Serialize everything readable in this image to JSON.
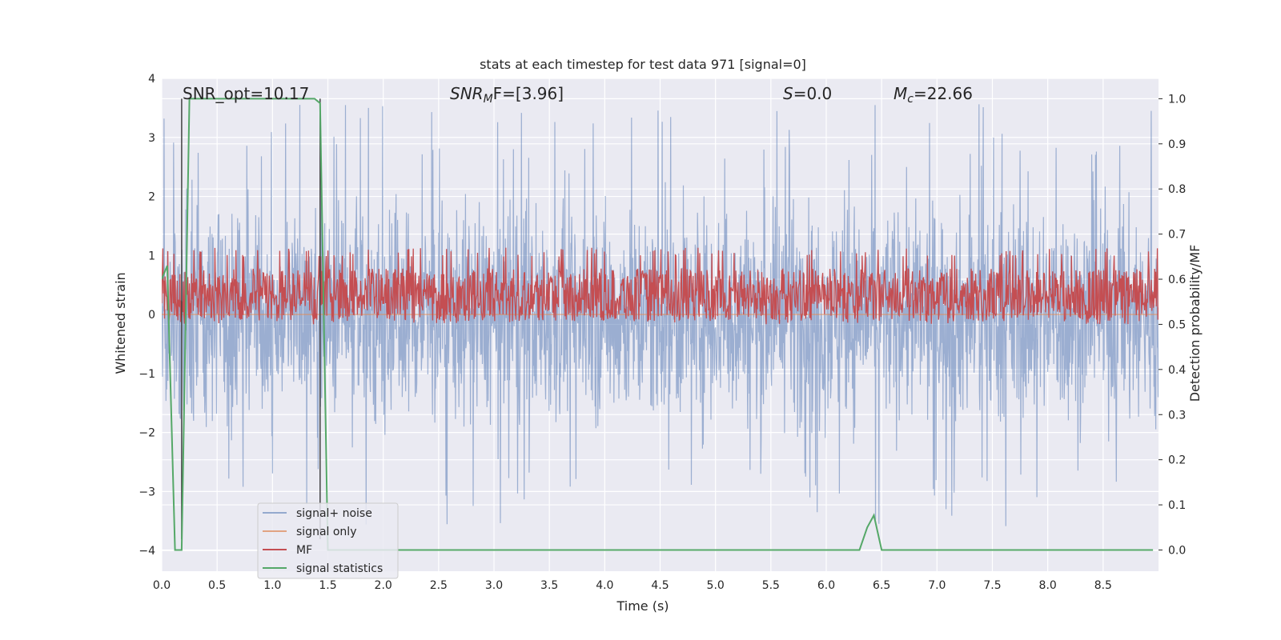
{
  "chart_data": {
    "type": "line",
    "title": "stats at each timestep for test data 971 [signal=0]",
    "xlabel": "Time (s)",
    "ylabel_left": "Whitened strain",
    "ylabel_right": "Detection probability/MF",
    "xlim": [
      0,
      9
    ],
    "ylim_left": [
      -4.35,
      4.0
    ],
    "ylim_right": [
      -0.047,
      1.045
    ],
    "x_ticks": [
      "0.0",
      "0.5",
      "1.0",
      "1.5",
      "2.0",
      "2.5",
      "3.0",
      "3.5",
      "4.0",
      "4.5",
      "5.0",
      "5.5",
      "6.0",
      "6.5",
      "7.0",
      "7.5",
      "8.0",
      "8.5"
    ],
    "y_ticks_left": [
      "4",
      "3",
      "2",
      "1",
      "0",
      "−1",
      "−2",
      "−3",
      "−4"
    ],
    "y_ticks_right": [
      "1.0",
      "0.9",
      "0.8",
      "0.7",
      "0.6",
      "0.5",
      "0.4",
      "0.3",
      "0.2",
      "0.1",
      "0.0"
    ],
    "annotations": {
      "snr_opt": "SNR_opt=10.17",
      "snr_mf_sym": "SNR",
      "snr_mf_sub": "M",
      "snr_mf_rest": "F=[3.96]",
      "s_sym": "S",
      "s_rest": "=0.0",
      "mc_sym": "M",
      "mc_sub": "c",
      "mc_rest": "=22.66"
    },
    "vertical_markers_s": [
      0.18,
      1.43
    ],
    "series": [
      {
        "name": "signal+ noise",
        "color": "#4c72b0",
        "axis": "left",
        "description_level": "noise band approx ±1.8, spikes to ±3.6"
      },
      {
        "name": "signal only",
        "color": "#dd8452",
        "axis": "left",
        "values_y": 0.0
      },
      {
        "name": "MF",
        "color": "#c44e52",
        "axis": "right",
        "level_range": [
          0.52,
          0.65
        ]
      },
      {
        "name": "signal statistics",
        "color": "#55a868",
        "axis": "right",
        "x": [
          0.0,
          0.05,
          0.12,
          0.18,
          0.25,
          0.3,
          1.38,
          1.43,
          1.5,
          1.55,
          6.3,
          6.37,
          6.43,
          6.5,
          8.95
        ],
        "y": [
          0.6,
          0.63,
          0.0,
          0.0,
          1.0,
          1.0,
          1.0,
          0.99,
          0.0,
          0.0,
          0.0,
          0.05,
          0.077,
          0.0,
          0.0
        ]
      }
    ],
    "legend": {
      "placement": "lower-left",
      "entries": [
        "signal+ noise",
        "signal only",
        "MF",
        "signal statistics"
      ]
    },
    "grid": true,
    "background": "#eaeaf2"
  }
}
